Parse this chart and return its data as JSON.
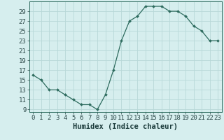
{
  "x": [
    0,
    1,
    2,
    3,
    4,
    5,
    6,
    7,
    8,
    9,
    10,
    11,
    12,
    13,
    14,
    15,
    16,
    17,
    18,
    19,
    20,
    21,
    22,
    23
  ],
  "y": [
    16,
    15,
    13,
    13,
    12,
    11,
    10,
    10,
    9,
    12,
    17,
    23,
    27,
    28,
    30,
    30,
    30,
    29,
    29,
    28,
    26,
    25,
    23,
    23
  ],
  "line_color": "#2d6b5e",
  "marker": "D",
  "marker_size": 2,
  "bg_color": "#d6eeee",
  "grid_color": "#b8d8d8",
  "xlabel": "Humidex (Indice chaleur)",
  "xlim": [
    -0.5,
    23.5
  ],
  "ylim": [
    8.5,
    31
  ],
  "yticks": [
    9,
    11,
    13,
    15,
    17,
    19,
    21,
    23,
    25,
    27,
    29
  ],
  "xlabel_fontsize": 7.5,
  "tick_fontsize": 6.5
}
